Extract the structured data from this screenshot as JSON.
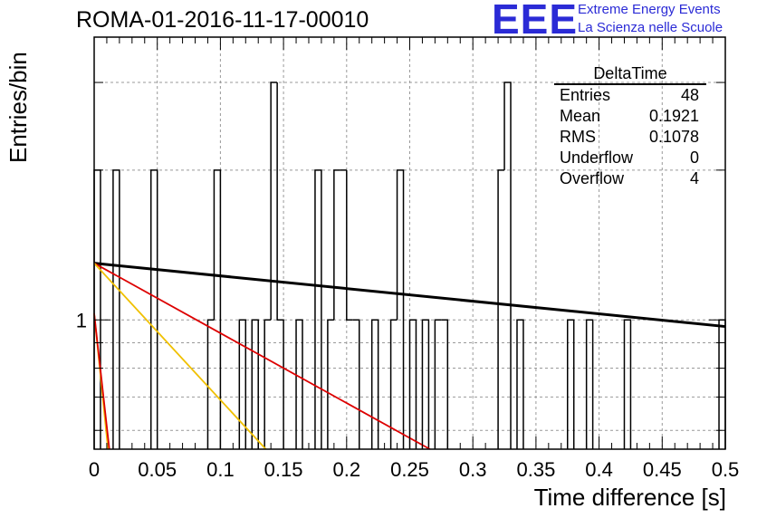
{
  "title": "ROMA-01-2016-11-17-00010",
  "logo": {
    "mark": "EEE",
    "line1": "Extreme Energy Events",
    "line2": "La Scienza nelle Scuole",
    "color": "#2b2bd6"
  },
  "stats": {
    "name": "DeltaTime",
    "rows": [
      {
        "label": "Entries",
        "value": "48"
      },
      {
        "label": "Mean",
        "value": "0.1921"
      },
      {
        "label": "RMS",
        "value": "0.1078"
      },
      {
        "label": "Underflow",
        "value": "0"
      },
      {
        "label": "Overflow",
        "value": "4"
      }
    ]
  },
  "chart_data": {
    "type": "histogram",
    "xlabel": "Time difference [s]",
    "ylabel": "Entries/bin",
    "xlim": [
      0,
      0.5
    ],
    "y_scale": "log",
    "ylim": [
      0.55,
      3.7
    ],
    "y_tick_labels": [
      "1"
    ],
    "x_tick_labels": [
      "0",
      "0.05",
      "0.1",
      "0.15",
      "0.2",
      "0.25",
      "0.3",
      "0.35",
      "0.4",
      "0.45",
      "0.5"
    ],
    "grid": true,
    "bin_width": 0.005,
    "bins": [
      {
        "x0": 0.0,
        "count": 2
      },
      {
        "x0": 0.015,
        "count": 2
      },
      {
        "x0": 0.045,
        "count": 2
      },
      {
        "x0": 0.09,
        "count": 1
      },
      {
        "x0": 0.095,
        "count": 2
      },
      {
        "x0": 0.115,
        "count": 1
      },
      {
        "x0": 0.125,
        "count": 1
      },
      {
        "x0": 0.135,
        "count": 1
      },
      {
        "x0": 0.14,
        "count": 3
      },
      {
        "x0": 0.145,
        "count": 1
      },
      {
        "x0": 0.16,
        "count": 1
      },
      {
        "x0": 0.175,
        "count": 2
      },
      {
        "x0": 0.185,
        "count": 1
      },
      {
        "x0": 0.19,
        "count": 2
      },
      {
        "x0": 0.195,
        "count": 2
      },
      {
        "x0": 0.2,
        "count": 1
      },
      {
        "x0": 0.205,
        "count": 1
      },
      {
        "x0": 0.22,
        "count": 1
      },
      {
        "x0": 0.235,
        "count": 1
      },
      {
        "x0": 0.24,
        "count": 2
      },
      {
        "x0": 0.25,
        "count": 1
      },
      {
        "x0": 0.26,
        "count": 1
      },
      {
        "x0": 0.27,
        "count": 1
      },
      {
        "x0": 0.275,
        "count": 1
      },
      {
        "x0": 0.32,
        "count": 2
      },
      {
        "x0": 0.325,
        "count": 3
      },
      {
        "x0": 0.335,
        "count": 1
      },
      {
        "x0": 0.375,
        "count": 1
      },
      {
        "x0": 0.39,
        "count": 1
      },
      {
        "x0": 0.42,
        "count": 1
      },
      {
        "x0": 0.495,
        "count": 1
      }
    ],
    "fit_lines": [
      {
        "color": "#000000",
        "x0": 0.0,
        "y0": 1.3,
        "x1": 0.5,
        "y1": 0.97
      },
      {
        "color": "#dd0000",
        "x0": 0.0,
        "y0": 1.3,
        "x1": 0.266,
        "y1": 0.55
      },
      {
        "color": "#f0c000",
        "x0": 0.0,
        "y0": 1.3,
        "x1": 0.136,
        "y1": 0.55
      },
      {
        "color": "#f0c000",
        "x0": 0.0,
        "y0": 1.03,
        "x1": 0.011,
        "y1": 0.55
      },
      {
        "color": "#dd0000",
        "x0": 0.0,
        "y0": 1.03,
        "x1": 0.012,
        "y1": 0.55
      }
    ]
  }
}
